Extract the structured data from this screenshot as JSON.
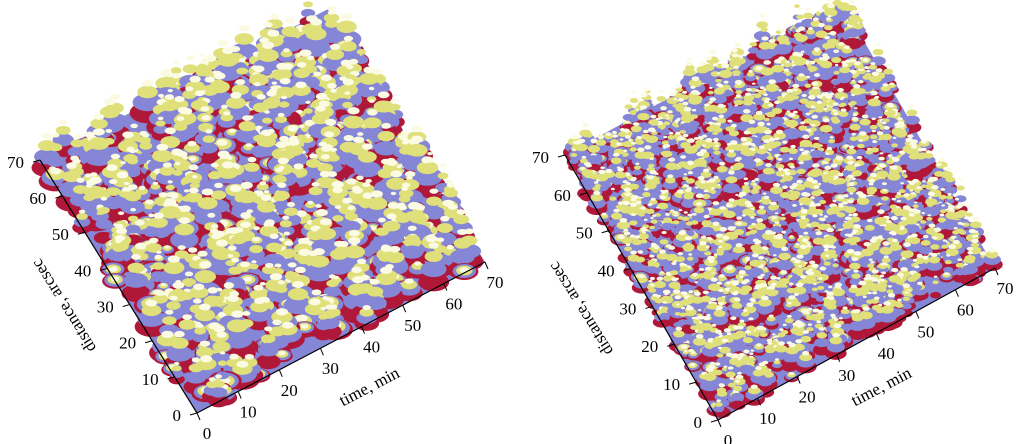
{
  "chart_data": [
    {
      "type": "surface",
      "xlabel": "time, min",
      "ylabel": "distance, arcsec",
      "xlim": [
        0,
        70
      ],
      "ylim": [
        0,
        70
      ],
      "xticks": [
        0,
        10,
        20,
        30,
        40,
        50,
        60,
        70
      ],
      "yticks": [
        0,
        10,
        20,
        30,
        40,
        50,
        60,
        70
      ],
      "colors": [
        "#b0183a",
        "#8686d6",
        "#e0e07a",
        "#fbfbe4"
      ]
    },
    {
      "type": "surface",
      "xlabel": "time, min",
      "ylabel": "distance, arcsec",
      "xlim": [
        0,
        70
      ],
      "ylim": [
        0,
        70
      ],
      "xticks": [
        0,
        10,
        20,
        30,
        40,
        50,
        60,
        70
      ],
      "yticks": [
        0,
        10,
        20,
        30,
        40,
        50,
        60,
        70
      ],
      "colors": [
        "#b0183a",
        "#8686d6",
        "#e0e07a",
        "#fbfbe4"
      ]
    }
  ]
}
